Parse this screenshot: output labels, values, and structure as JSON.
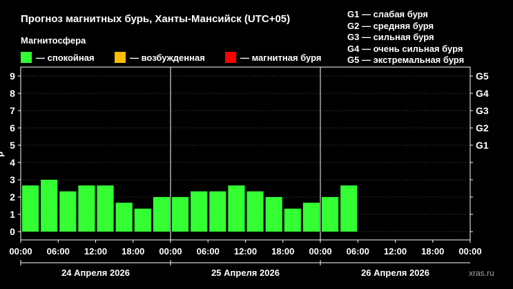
{
  "header": {
    "title": "Прогноз магнитных бурь, Ханты-Мансийск (UTC+05)",
    "subtitle": "Магнитосфера"
  },
  "legend": [
    {
      "label": "— спокойная",
      "color": "#33ff33"
    },
    {
      "label": "— возбужденная",
      "color": "#ffbf00"
    },
    {
      "label": "— магнитная буря",
      "color": "#ff0000"
    }
  ],
  "g_levels": [
    "G1 — слабая буря",
    "G2 — средняя буря",
    "G3 — сильная буря",
    "G4 — очень сильная буря",
    "G5 — экстремальная буря"
  ],
  "watermark": "xras.ru",
  "ylabel_fragment": "р",
  "chart_data": {
    "type": "bar",
    "title": "Прогноз магнитных бурь, Ханты-Мансийск (UTC+05)",
    "ylim": [
      0,
      9
    ],
    "y_ticks": [
      "0",
      "1",
      "2",
      "3",
      "4",
      "5",
      "6",
      "7",
      "8",
      "9"
    ],
    "right_ticks": [
      {
        "label": "G1",
        "value": 5
      },
      {
        "label": "G2",
        "value": 6
      },
      {
        "label": "G3",
        "value": 7
      },
      {
        "label": "G4",
        "value": 8
      },
      {
        "label": "G5",
        "value": 9
      }
    ],
    "x_tick_labels": [
      "00:00",
      "06:00",
      "12:00",
      "18:00",
      "00:00",
      "06:00",
      "12:00",
      "18:00",
      "00:00",
      "06:00",
      "12:00",
      "18:00",
      "00:00"
    ],
    "days": [
      "24 Апреля 2026",
      "25 Апреля 2026",
      "26 Апреля 2026"
    ],
    "bar_interval_hours": 3,
    "values": [
      2.67,
      3.0,
      2.33,
      2.67,
      2.67,
      1.67,
      1.33,
      2.0,
      2.0,
      2.33,
      2.33,
      2.67,
      2.33,
      2.0,
      1.33,
      1.67,
      2.0,
      2.67
    ],
    "bar_color": "#33ff33",
    "grid": true
  }
}
